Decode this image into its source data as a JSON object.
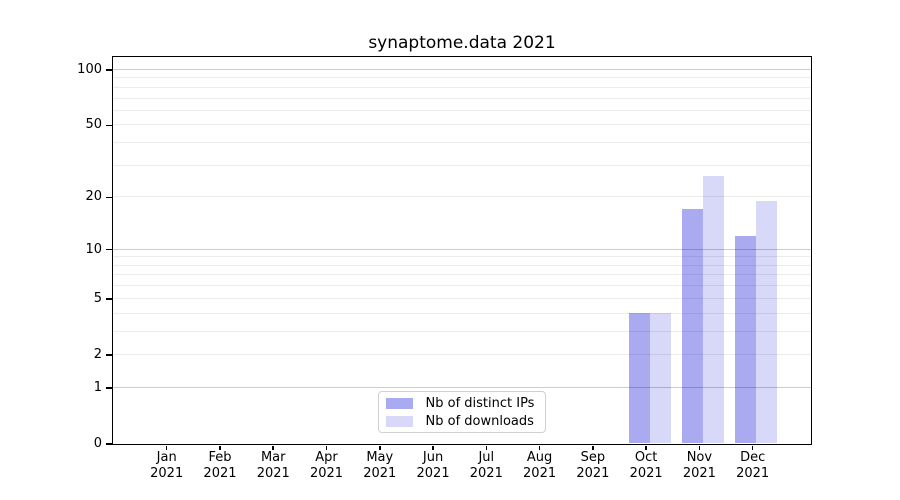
{
  "chart_data": {
    "type": "bar",
    "title": "synaptome.data 2021",
    "categories": [
      "Jan 2021",
      "Feb 2021",
      "Mar 2021",
      "Apr 2021",
      "May 2021",
      "Jun 2021",
      "Jul 2021",
      "Aug 2021",
      "Sep 2021",
      "Oct 2021",
      "Nov 2021",
      "Dec 2021"
    ],
    "series": [
      {
        "name": "Nb of distinct IPs",
        "color": "#aaaaf1",
        "values": [
          0,
          0,
          0,
          0,
          0,
          0,
          0,
          0,
          0,
          4,
          17,
          12
        ]
      },
      {
        "name": "Nb of downloads",
        "color": "#d8d8f8",
        "values": [
          0,
          0,
          0,
          0,
          0,
          0,
          0,
          0,
          0,
          4,
          26,
          19
        ]
      }
    ],
    "xlabel": "",
    "ylabel": "",
    "yscale": "log10(1+y)",
    "ylim": [
      0,
      118
    ],
    "yticks": [
      0,
      1,
      2,
      5,
      10,
      20,
      50,
      100
    ],
    "grid": {
      "on": true,
      "major": [
        1,
        10,
        100
      ],
      "minor": [
        2,
        3,
        4,
        5,
        6,
        7,
        8,
        9,
        20,
        30,
        40,
        50,
        60,
        70,
        80,
        90
      ],
      "major_color": "#cccccc",
      "minor_color": "#ececec"
    },
    "legend_position": "lower center",
    "spine_color": "#000000",
    "legend_border_color": "#d0d0d0"
  }
}
